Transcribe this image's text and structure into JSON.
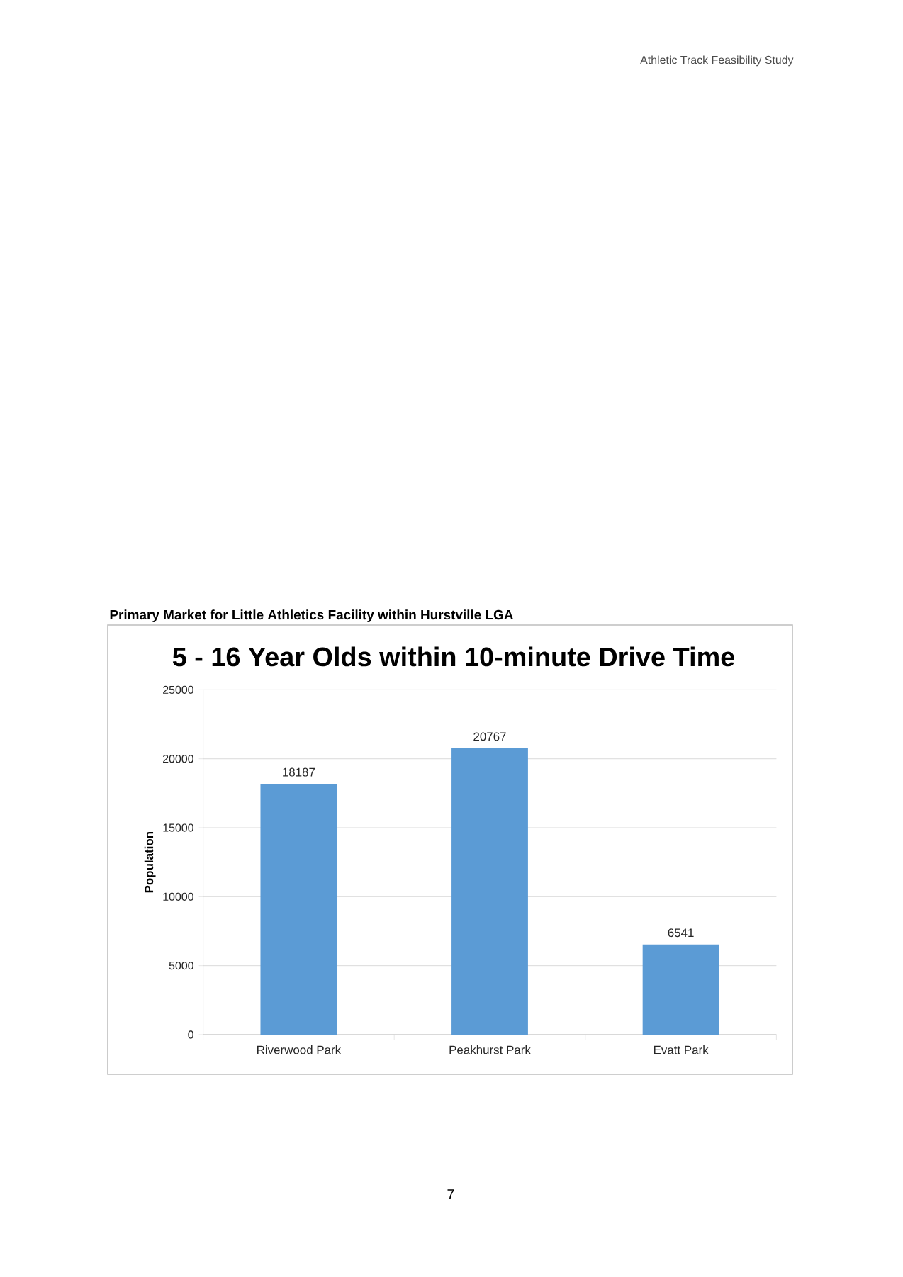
{
  "chart_data": {
    "type": "bar",
    "title": "5 - 16 Year Olds within 10-minute Drive Time",
    "ylabel": "Population",
    "categories": [
      "Riverwood Park",
      "Peakhurst Park",
      "Evatt Park"
    ],
    "values": [
      18187,
      20767,
      6541
    ],
    "color": "#5b9bd5",
    "ylim": [
      0,
      25000
    ],
    "yticks": [
      0,
      5000,
      10000,
      15000,
      20000,
      25000
    ],
    "grid": "y",
    "data_labels": true,
    "annotations": [
      "Athletic Track Feasibility Study",
      "Primary Market for Little Athletics Facility within Hurstville LGA",
      "7"
    ]
  }
}
